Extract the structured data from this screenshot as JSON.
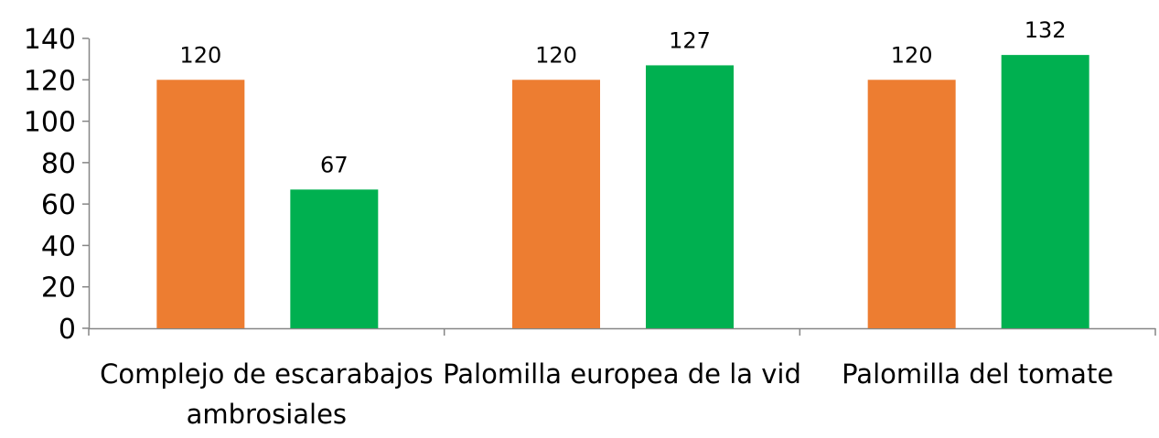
{
  "chart_data": {
    "type": "bar",
    "categories": [
      "Complejo de escarabajos ambrosiales",
      "Palomilla europea de la vid",
      "Palomilla del tomate"
    ],
    "series": [
      {
        "color": "#ED7D31",
        "values": [
          120,
          120,
          120
        ]
      },
      {
        "color": "#00B050",
        "values": [
          67,
          127,
          132
        ]
      }
    ],
    "ylim": [
      0,
      140
    ],
    "yticks": [
      0,
      20,
      40,
      60,
      80,
      100,
      120,
      140
    ],
    "data_labels": true,
    "gridlines": false,
    "legend": "none",
    "xlabel": "",
    "ylabel": "",
    "title": ""
  }
}
